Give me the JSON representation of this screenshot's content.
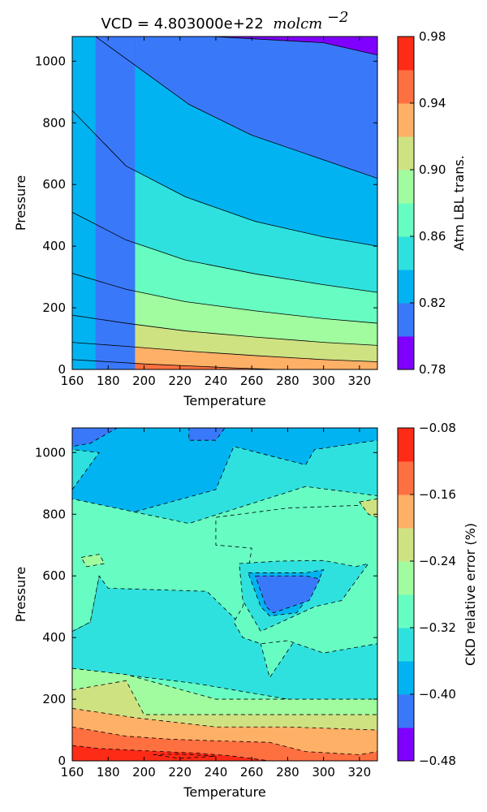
{
  "chart_data": [
    {
      "type": "contour",
      "title_prefix": "VCD = 4.803000e+22",
      "title_units": "molcm",
      "title_units_exponent": "−2",
      "xlabel": "Temperature",
      "ylabel": "Pressure",
      "xlim": [
        160,
        330
      ],
      "ylim": [
        0,
        1080
      ],
      "x_ticks": [
        "160",
        "180",
        "200",
        "220",
        "240",
        "260",
        "280",
        "300",
        "320"
      ],
      "y_ticks": [
        "0",
        "200",
        "400",
        "600",
        "800",
        "1000"
      ],
      "colorbar_label": "Atm LBL trans.",
      "colorbar_range": [
        0.78,
        0.98
      ],
      "colorbar_ticks": [
        "0.78",
        "0.82",
        "0.86",
        "0.90",
        "0.94",
        "0.98"
      ],
      "levels": [
        0.78,
        0.8,
        0.82,
        0.84,
        0.86,
        0.88,
        0.9,
        0.92,
        0.94,
        0.96,
        0.98
      ],
      "level_colors": [
        "#7f00ff",
        "#3a78fa",
        "#02b3f1",
        "#2fe1de",
        "#67fdc2",
        "#a0fc9f",
        "#cfe282",
        "#feb066",
        "#ff7041",
        "#fe2b17"
      ],
      "contour_style": "solid",
      "boundaries": [
        {
          "level": 0.8,
          "points": [
            [
              195,
              1080
            ],
            [
              238,
              1080
            ],
            [
              300,
              1060
            ],
            [
              330,
              1020
            ]
          ]
        },
        {
          "level": 0.82,
          "points": [
            [
              173,
              1080
            ],
            [
              225,
              860
            ],
            [
              260,
              760
            ],
            [
              300,
              680
            ],
            [
              330,
              620
            ]
          ]
        },
        {
          "level": 0.84,
          "points": [
            [
              160,
              840
            ],
            [
              190,
              660
            ],
            [
              223,
              560
            ],
            [
              262,
              480
            ],
            [
              300,
              430
            ],
            [
              330,
              400
            ]
          ]
        },
        {
          "level": 0.86,
          "points": [
            [
              160,
              510
            ],
            [
              190,
              420
            ],
            [
              223,
              355
            ],
            [
              262,
              310
            ],
            [
              300,
              275
            ],
            [
              330,
              250
            ]
          ]
        },
        {
          "level": 0.88,
          "points": [
            [
              160,
              312
            ],
            [
              190,
              260
            ],
            [
              223,
              220
            ],
            [
              262,
              190
            ],
            [
              300,
              165
            ],
            [
              330,
              150
            ]
          ]
        },
        {
          "level": 0.9,
          "points": [
            [
              160,
              176
            ],
            [
              190,
              150
            ],
            [
              223,
              125
            ],
            [
              262,
              105
            ],
            [
              300,
              88
            ],
            [
              330,
              78
            ]
          ]
        },
        {
          "level": 0.92,
          "points": [
            [
              160,
              88
            ],
            [
              190,
              75
            ],
            [
              223,
              60
            ],
            [
              262,
              45
            ],
            [
              300,
              32
            ],
            [
              330,
              25
            ]
          ]
        },
        {
          "level": 0.94,
          "points": [
            [
              160,
              32
            ],
            [
              200,
              18
            ],
            [
              250,
              5
            ],
            [
              275,
              0
            ]
          ]
        }
      ]
    },
    {
      "type": "contour",
      "xlabel": "Temperature",
      "ylabel": "Pressure",
      "xlim": [
        160,
        330
      ],
      "ylim": [
        0,
        1080
      ],
      "x_ticks": [
        "160",
        "180",
        "200",
        "220",
        "240",
        "260",
        "280",
        "300",
        "320"
      ],
      "y_ticks": [
        "0",
        "200",
        "400",
        "600",
        "800",
        "1000"
      ],
      "colorbar_label": "CKD relative error (%)",
      "colorbar_range": [
        -0.48,
        -0.08
      ],
      "colorbar_ticks": [
        "−0.48",
        "−0.40",
        "−0.32",
        "−0.24",
        "−0.16",
        "−0.08"
      ],
      "levels": [
        -0.48,
        -0.44,
        -0.4,
        -0.36,
        -0.32,
        -0.28,
        -0.24,
        -0.2,
        -0.16,
        -0.12,
        -0.08
      ],
      "level_colors": [
        "#7f00ff",
        "#3a78fa",
        "#02b3f1",
        "#2fe1de",
        "#67fdc2",
        "#a0fc9f",
        "#cfe282",
        "#feb066",
        "#ff7041",
        "#fe2b17"
      ],
      "contour_style": "dashed",
      "regions": [
        {
          "level": -0.36,
          "points": [
            [
              160,
              1080
            ],
            [
              330,
              1080
            ],
            [
              330,
              0
            ],
            [
              160,
              0
            ]
          ]
        },
        {
          "level": -0.4,
          "points": [
            [
              160,
              1080
            ],
            [
              330,
              1080
            ],
            [
              330,
              1040
            ],
            [
              295,
              1010
            ],
            [
              290,
              960
            ],
            [
              250,
              1020
            ],
            [
              240,
              880
            ],
            [
              190,
              800
            ],
            [
              160,
              840
            ]
          ]
        },
        {
          "level": -0.44,
          "points": [
            [
              160,
              1080
            ],
            [
              185,
              1080
            ],
            [
              170,
              1030
            ],
            [
              160,
              1020
            ]
          ]
        },
        {
          "level": -0.44,
          "points": [
            [
              225,
              1080
            ],
            [
              245,
              1080
            ],
            [
              240,
              1040
            ],
            [
              225,
              1040
            ]
          ]
        },
        {
          "level": -0.4,
          "points": [
            [
              160,
              760
            ],
            [
              170,
              700
            ],
            [
              175,
              600
            ],
            [
              170,
              450
            ],
            [
              160,
              420
            ]
          ]
        },
        {
          "level": -0.32,
          "points": [
            [
              160,
              420
            ],
            [
              170,
              450
            ],
            [
              175,
              600
            ],
            [
              180,
              560
            ],
            [
              235,
              550
            ],
            [
              265,
              380
            ],
            [
              270,
              270
            ],
            [
              285,
              400
            ],
            [
              330,
              420
            ],
            [
              330,
              860
            ],
            [
              290,
              890
            ],
            [
              225,
              770
            ],
            [
              160,
              850
            ],
            [
              160,
              300
            ]
          ]
        },
        {
          "level": -0.32,
          "points": [
            [
              240,
              790
            ],
            [
              280,
              820
            ],
            [
              325,
              830
            ],
            [
              330,
              850
            ],
            [
              330,
              380
            ],
            [
              300,
              350
            ],
            [
              280,
              390
            ],
            [
              265,
              380
            ],
            [
              255,
              400
            ],
            [
              250,
              450
            ],
            [
              255,
              500
            ],
            [
              260,
              690
            ],
            [
              240,
              700
            ]
          ]
        },
        {
          "level": -0.36,
          "points": [
            [
              253,
              640
            ],
            [
              275,
              648
            ],
            [
              300,
              650
            ],
            [
              318,
              630
            ],
            [
              325,
              640
            ],
            [
              310,
              520
            ],
            [
              295,
              500
            ],
            [
              265,
              420
            ],
            [
              255,
              520
            ]
          ]
        },
        {
          "level": -0.4,
          "points": [
            [
              258,
              610
            ],
            [
              290,
              610
            ],
            [
              300,
              620
            ],
            [
              295,
              560
            ],
            [
              285,
              480
            ],
            [
              270,
              470
            ],
            [
              265,
              500
            ]
          ]
        },
        {
          "level": -0.44,
          "points": [
            [
              262,
              600
            ],
            [
              290,
              600
            ],
            [
              298,
              590
            ],
            [
              292,
              520
            ],
            [
              272,
              480
            ],
            [
              268,
              500
            ]
          ]
        },
        {
          "level": -0.32,
          "points": [
            [
              160,
              300
            ],
            [
              230,
              250
            ],
            [
              280,
              200
            ],
            [
              330,
              180
            ],
            [
              330,
              0
            ],
            [
              160,
              0
            ]
          ]
        },
        {
          "level": -0.28,
          "points": [
            [
              160,
              300
            ],
            [
              190,
              280
            ],
            [
              240,
              200
            ],
            [
              280,
              200
            ],
            [
              330,
              200
            ],
            [
              330,
              0
            ],
            [
              160,
              0
            ]
          ]
        },
        {
          "level": -0.24,
          "points": [
            [
              160,
              230
            ],
            [
              190,
              260
            ],
            [
              200,
              150
            ],
            [
              235,
              150
            ],
            [
              255,
              150
            ],
            [
              295,
              150
            ],
            [
              330,
              150
            ],
            [
              330,
              0
            ],
            [
              160,
              0
            ]
          ]
        },
        {
          "level": -0.2,
          "points": [
            [
              160,
              170
            ],
            [
              195,
              140
            ],
            [
              240,
              110
            ],
            [
              280,
              110
            ],
            [
              330,
              100
            ],
            [
              330,
              0
            ],
            [
              160,
              0
            ]
          ]
        },
        {
          "level": -0.16,
          "points": [
            [
              160,
              110
            ],
            [
              190,
              80
            ],
            [
              215,
              70
            ],
            [
              240,
              65
            ],
            [
              270,
              60
            ],
            [
              290,
              30
            ],
            [
              320,
              20
            ],
            [
              330,
              30
            ],
            [
              330,
              0
            ],
            [
              160,
              0
            ]
          ]
        },
        {
          "level": -0.12,
          "points": [
            [
              160,
              50
            ],
            [
              175,
              40
            ],
            [
              210,
              30
            ],
            [
              230,
              25
            ],
            [
              250,
              15
            ],
            [
              270,
              0
            ],
            [
              160,
              0
            ]
          ]
        },
        {
          "level": -0.08,
          "points": [
            [
              205,
              20
            ],
            [
              220,
              22
            ],
            [
              240,
              15
            ],
            [
              220,
              8
            ]
          ]
        },
        {
          "level": -0.24,
          "points": [
            [
              320,
              840
            ],
            [
              330,
              850
            ],
            [
              330,
              790
            ],
            [
              325,
              800
            ]
          ]
        },
        {
          "level": -0.28,
          "points": [
            [
              165,
              660
            ],
            [
              175,
              670
            ],
            [
              178,
              640
            ],
            [
              168,
              630
            ]
          ]
        },
        {
          "level": -0.36,
          "points": [
            [
              160,
              880
            ],
            [
              175,
              1000
            ],
            [
              160,
              1010
            ]
          ]
        }
      ]
    }
  ]
}
